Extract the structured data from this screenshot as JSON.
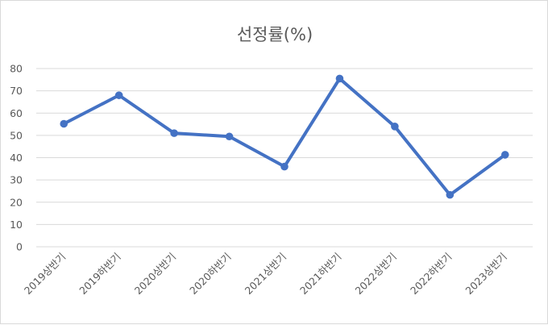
{
  "chart_data": {
    "type": "line",
    "title": "선정률(%)",
    "categories": [
      "2019상반기",
      "2019하반기",
      "2020상반기",
      "2020하반기",
      "2021상반기",
      "2021하반기",
      "2022상반기",
      "2022하반기",
      "2023상반기"
    ],
    "series": [
      {
        "values": [
          55.2,
          68.0,
          51.0,
          49.5,
          36.0,
          75.5,
          54.0,
          23.3,
          41.3
        ]
      }
    ],
    "ylim": [
      0,
      80
    ],
    "yticks": [
      "0",
      "10",
      "20",
      "30",
      "40",
      "50",
      "60",
      "70",
      "80"
    ],
    "grid": true,
    "legend": "none",
    "line_color": "#4472c4"
  }
}
